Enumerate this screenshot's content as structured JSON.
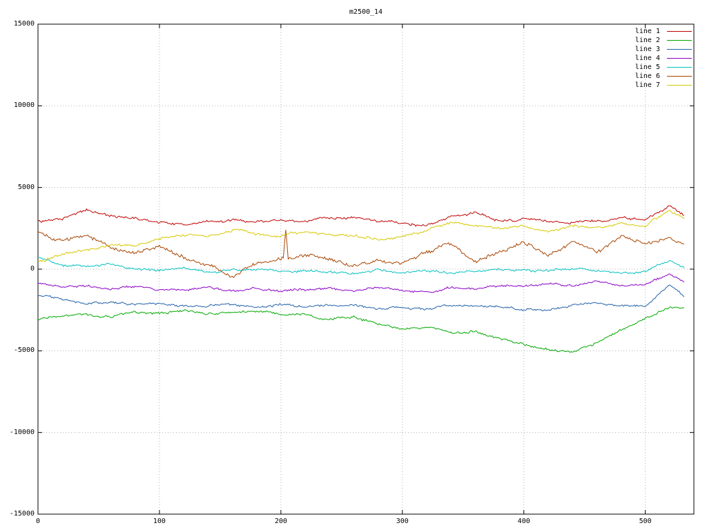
{
  "page": {
    "title": "m2500_14"
  },
  "chart_data": {
    "type": "line",
    "title": "m2500_14",
    "xlabel": "",
    "ylabel": "",
    "xlim": [
      0,
      540
    ],
    "ylim": [
      -15000,
      15000
    ],
    "x_ticks": [
      0,
      100,
      200,
      300,
      400,
      500
    ],
    "y_ticks": [
      -15000,
      -10000,
      -5000,
      0,
      5000,
      10000,
      15000
    ],
    "grid": true,
    "grid_style": "dotted",
    "legend_position": "top-right-inside",
    "anchor_step": 20,
    "x_end": 532,
    "series": [
      {
        "name": "line 1",
        "color": "#c00000",
        "noise": 120,
        "anchors": [
          2900,
          3100,
          3700,
          3200,
          3100,
          2900,
          2750,
          2900,
          3000,
          2900,
          2950,
          2900,
          3200,
          3100,
          2900,
          2800,
          2600,
          3200,
          3400,
          3000,
          3100,
          2900,
          2800,
          3000,
          3100,
          3000,
          3900,
          2900
        ]
      },
      {
        "name": "line 2",
        "color": "#00a800",
        "noise": 110,
        "anchors": [
          -3100,
          -2800,
          -2700,
          -2900,
          -2600,
          -2700,
          -2500,
          -2700,
          -2650,
          -2600,
          -2800,
          -2700,
          -3100,
          -2900,
          -3300,
          -3600,
          -3500,
          -3900,
          -3800,
          -4200,
          -4600,
          -4900,
          -5050,
          -4500,
          -3700,
          -3000,
          -2300,
          -2400
        ]
      },
      {
        "name": "line 3",
        "color": "#2060a8",
        "noise": 100,
        "anchors": [
          -1600,
          -1900,
          -2100,
          -2000,
          -2200,
          -2100,
          -2300,
          -2200,
          -2100,
          -2300,
          -2200,
          -2300,
          -2200,
          -2150,
          -2400,
          -2300,
          -2400,
          -2200,
          -2300,
          -2250,
          -2500,
          -2450,
          -2200,
          -2100,
          -2300,
          -2200,
          -900,
          -2200
        ]
      },
      {
        "name": "line 4",
        "color": "#8a00c8",
        "noise": 100,
        "anchors": [
          -900,
          -1100,
          -1000,
          -1200,
          -1100,
          -1300,
          -1200,
          -1100,
          -1300,
          -1200,
          -1400,
          -1300,
          -1200,
          -1300,
          -1100,
          -1300,
          -1400,
          -1100,
          -1200,
          -1000,
          -1100,
          -900,
          -1000,
          -800,
          -1000,
          -900,
          -300,
          -1100
        ]
      },
      {
        "name": "line 5",
        "color": "#00c0c0",
        "noise": 110,
        "anchors": [
          700,
          200,
          100,
          300,
          0,
          -100,
          100,
          -200,
          0,
          -100,
          -200,
          0,
          -100,
          -300,
          -100,
          -200,
          -100,
          -300,
          -200,
          0,
          -100,
          -200,
          0,
          -100,
          -200,
          -100,
          500,
          -200
        ]
      },
      {
        "name": "line 6",
        "color": "#a84400",
        "noise": 170,
        "anchors": [
          2300,
          1800,
          2100,
          1400,
          1100,
          1500,
          700,
          200,
          -400,
          300,
          600,
          900,
          600,
          200,
          600,
          300,
          1000,
          1600,
          500,
          1100,
          1600,
          700,
          1700,
          1100,
          2100,
          1600,
          1900,
          1400
        ],
        "spikes": [
          {
            "x": 204,
            "v": 2400
          }
        ]
      },
      {
        "name": "line 7",
        "color": "#d8c800",
        "noise": 120,
        "anchors": [
          500,
          900,
          1200,
          1500,
          1400,
          1900,
          2100,
          2000,
          2400,
          2200,
          2100,
          2300,
          2200,
          2000,
          1800,
          2000,
          2400,
          2900,
          2700,
          2500,
          2600,
          2400,
          2700,
          2500,
          2800,
          2600,
          3600,
          2800
        ]
      }
    ]
  }
}
